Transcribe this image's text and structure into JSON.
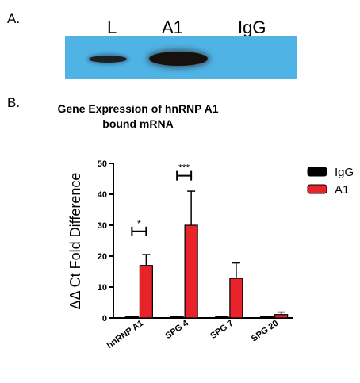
{
  "panel_a": {
    "label": "A.",
    "lanes": [
      "L",
      "A1",
      "IgG"
    ]
  },
  "panel_b": {
    "label": "B."
  },
  "chart_data": {
    "type": "bar",
    "title_lines": [
      "Gene Expression of hnRNP A1",
      "bound mRNA"
    ],
    "ylabel": "ΔΔ Ct Fold Difference",
    "xlabel": "",
    "ylim": [
      0,
      50
    ],
    "yticks": [
      0,
      10,
      20,
      30,
      40,
      50
    ],
    "categories": [
      "hnRNP A1",
      "SPG 4",
      "SPG 7",
      "SPG 20"
    ],
    "series": [
      {
        "name": "IgG",
        "color": "#000000",
        "values": [
          0.6,
          0.6,
          0.6,
          0.6
        ],
        "errors": [
          0,
          0,
          0,
          0
        ]
      },
      {
        "name": "A1",
        "color": "#e8232a",
        "values": [
          17,
          30,
          12.8,
          1.1
        ],
        "errors": [
          3.5,
          11,
          5,
          0.8
        ]
      }
    ],
    "significance": [
      {
        "category": "hnRNP A1",
        "label": "*",
        "y": 28
      },
      {
        "category": "SPG 4",
        "label": "***",
        "y": 46
      }
    ],
    "legend_position": "top-right",
    "grid": false
  }
}
